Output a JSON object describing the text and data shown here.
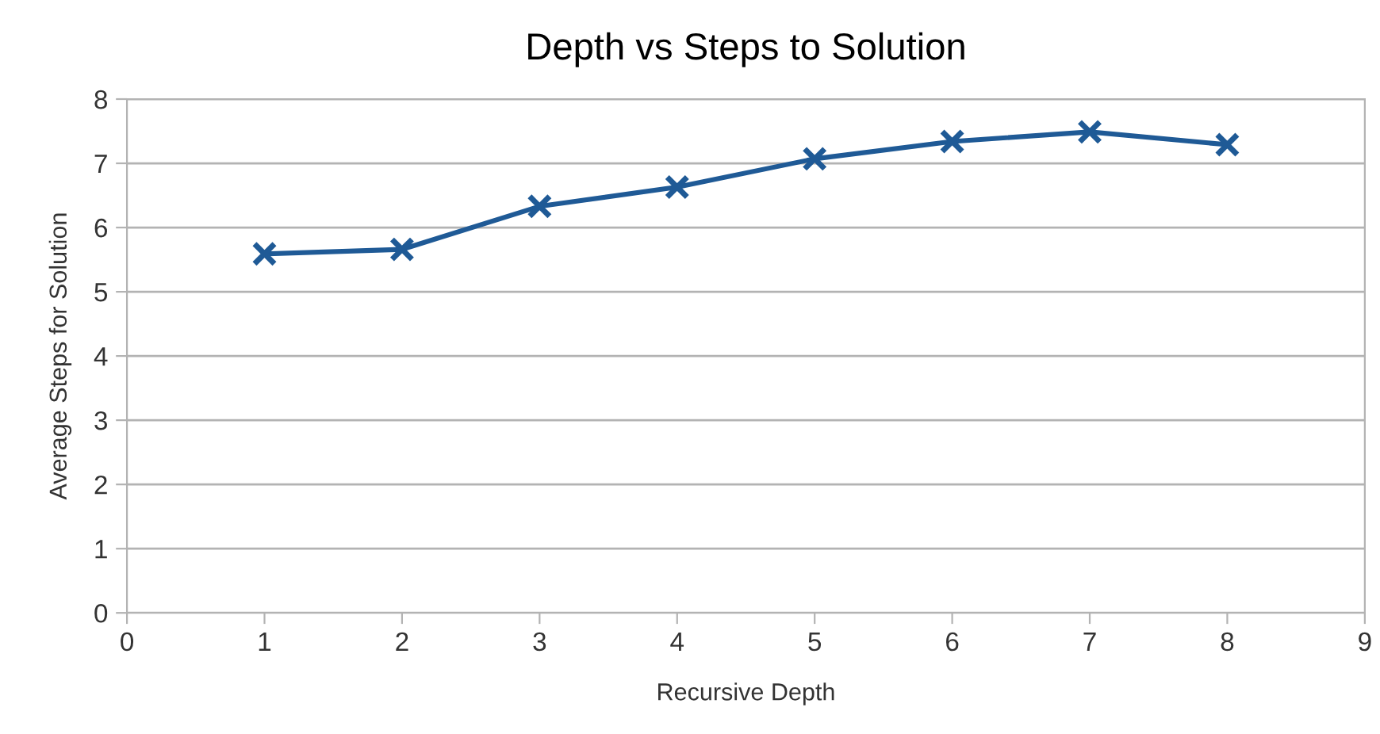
{
  "chart_data": {
    "type": "line",
    "title": "Depth vs Steps to Solution",
    "xlabel": "Recursive Depth",
    "ylabel": "Average Steps for Solution",
    "x": [
      1,
      2,
      3,
      4,
      5,
      6,
      7,
      8
    ],
    "series": [
      {
        "color": "#1f5a96",
        "values": [
          5.59,
          5.66,
          6.33,
          6.63,
          7.07,
          7.34,
          7.49,
          7.29
        ]
      }
    ],
    "xlim": [
      0,
      9
    ],
    "xticks": [
      0,
      1,
      2,
      3,
      4,
      5,
      6,
      7,
      8,
      9
    ],
    "ylim": [
      0,
      8
    ],
    "yticks": [
      0,
      1,
      2,
      3,
      4,
      5,
      6,
      7,
      8
    ],
    "grid": "y",
    "marker": "cross",
    "line_style": "solid"
  }
}
